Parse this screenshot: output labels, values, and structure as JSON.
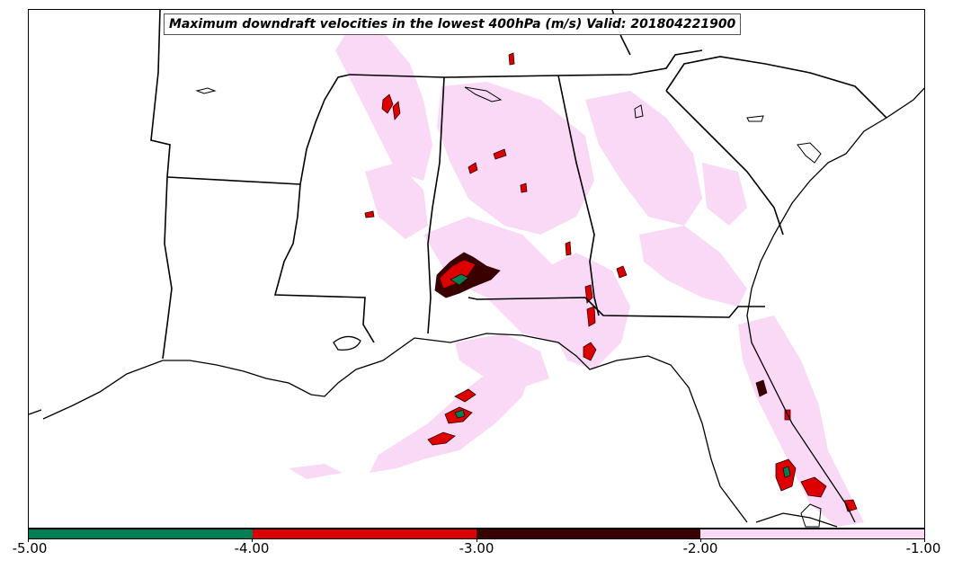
{
  "title": "Maximum downdraft velocities in the lowest 400hPa (m/s) Valid: 201804221900",
  "colors": {
    "pink": "#f9d9f6",
    "dark_maroon": "#3a0000",
    "red": "#dd0000",
    "green": "#007f55",
    "border": "#000000"
  },
  "colorbar": {
    "segments": [
      {
        "from": -5.0,
        "to": -4.0,
        "color": "#007f55"
      },
      {
        "from": -4.0,
        "to": -3.0,
        "color": "#dd0000"
      },
      {
        "from": -3.0,
        "to": -2.0,
        "color": "#3a0000"
      },
      {
        "from": -2.0,
        "to": -1.0,
        "color": "#f9d9f6"
      }
    ],
    "ticks": [
      "-5.00",
      "-4.00",
      "-3.00",
      "-2.00",
      "-1.00"
    ]
  }
}
